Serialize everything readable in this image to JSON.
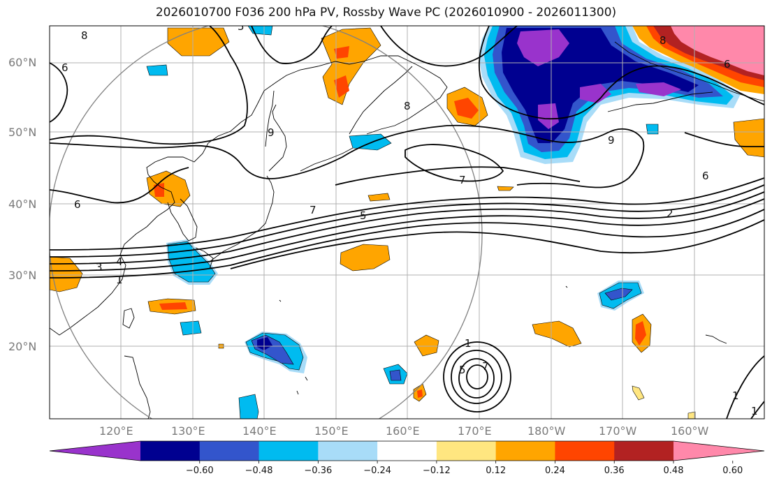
{
  "title": "2026010700 F036 200 hPa PV, Rossby Wave PC (2026010900 - 2026011300)",
  "map": {
    "lat_labels": [
      "20°N",
      "30°N",
      "40°N",
      "50°N",
      "60°N"
    ],
    "lon_labels": [
      "120°E",
      "130°E",
      "140°E",
      "150°E",
      "160°E",
      "170°E",
      "180°W",
      "170°W",
      "160°W"
    ],
    "contour_labels": [
      "8",
      "5",
      "6",
      "8",
      "8",
      "6",
      "9",
      "9",
      "7",
      "6",
      "7",
      "5",
      "2",
      "6",
      "3",
      "4",
      "1",
      "1",
      "5",
      "7",
      "1",
      "1"
    ]
  },
  "colorbar": {
    "colors": [
      "#9933cc",
      "#000090",
      "#3355cc",
      "#00bbf0",
      "#a8dcf8",
      "#ffffff",
      "#ffe680",
      "#ffa500",
      "#ff4500",
      "#b22222",
      "#ff88aa"
    ],
    "ticks": [
      "−0.60",
      "−0.48",
      "−0.36",
      "−0.24",
      "−0.12",
      "0.12",
      "0.24",
      "0.36",
      "0.48",
      "0.60"
    ]
  }
}
